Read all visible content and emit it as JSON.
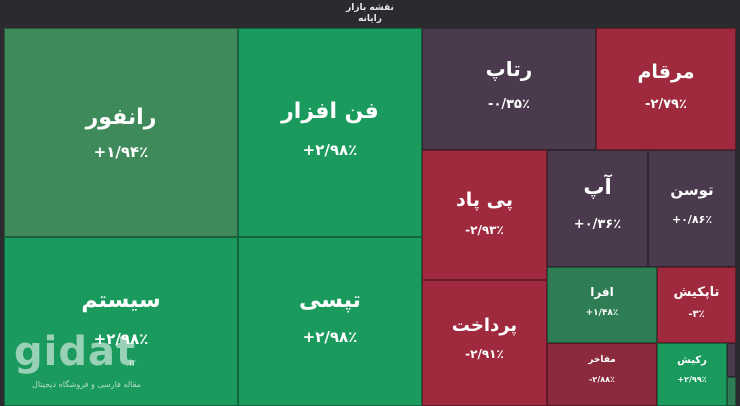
{
  "header": {
    "title": "نقشه بازار",
    "subtitle": "رایانه"
  },
  "tiles": {
    "ranfour": {
      "name": "رانفور",
      "change": "+۱/۹۴٪"
    },
    "fanafzar": {
      "name": "فن افزار",
      "change": "+۲/۹۸٪"
    },
    "system": {
      "name": "سیستم",
      "change": "+۲/۹۸٪"
    },
    "tapsi": {
      "name": "تپسی",
      "change": "+۲/۹۸٪"
    },
    "ratap": {
      "name": "رتاپ",
      "change": "-۰/۳۵٪"
    },
    "marqam": {
      "name": "مرقام",
      "change": "-۲/۷۹٪"
    },
    "pipad": {
      "name": "پی پاد",
      "change": "-۲/۹۳٪"
    },
    "ap": {
      "name": "آپ",
      "change": "+۰/۳۶٪"
    },
    "toosan": {
      "name": "توسن",
      "change": "+۰/۸۶٪"
    },
    "pardakht": {
      "name": "پرداخت",
      "change": "-۲/۹۱٪"
    },
    "afra": {
      "name": "افرا",
      "change": "+۱/۴۸٪"
    },
    "tapkish": {
      "name": "تاپکیش",
      "change": "-۳٪"
    },
    "mafakher": {
      "name": "مفاخر",
      "change": "-۲/۸۸٪"
    },
    "rakish": {
      "name": "رکیش",
      "change": "+۲/۹۹٪"
    }
  },
  "watermark": {
    "logo": "gidat",
    "tld": ".ir",
    "tagline": "مقاله فارسی و فروشگاه دیجیتال"
  }
}
